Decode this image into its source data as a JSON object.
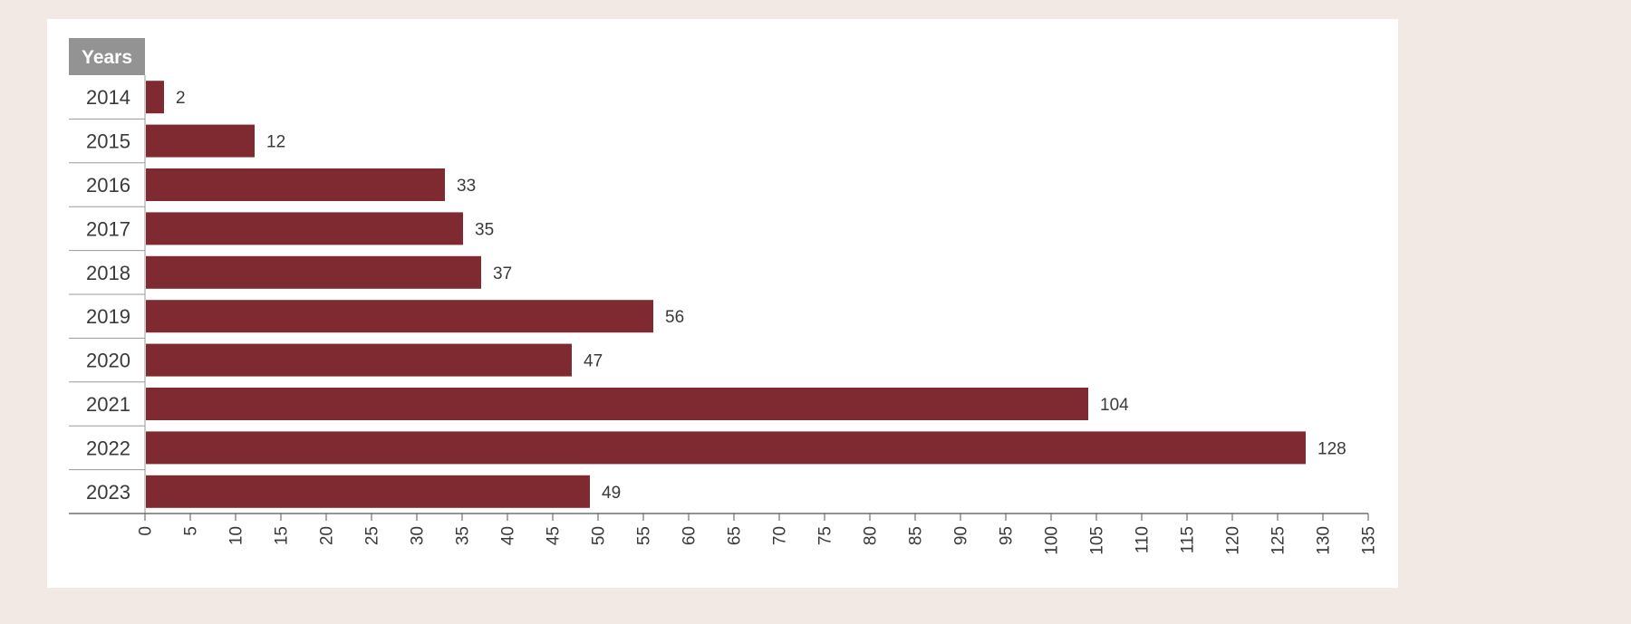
{
  "chart_data": {
    "type": "bar",
    "orientation": "horizontal",
    "header": "Years",
    "categories": [
      "2014",
      "2015",
      "2016",
      "2017",
      "2018",
      "2019",
      "2020",
      "2021",
      "2022",
      "2023"
    ],
    "values": [
      2,
      12,
      33,
      35,
      37,
      56,
      47,
      104,
      128,
      49
    ],
    "xlim": [
      0,
      135
    ],
    "x_ticks": [
      0,
      5,
      10,
      15,
      20,
      25,
      30,
      35,
      40,
      45,
      50,
      55,
      60,
      65,
      70,
      75,
      80,
      85,
      90,
      95,
      100,
      105,
      110,
      115,
      120,
      125,
      130,
      135
    ],
    "grid": false,
    "legend": "none",
    "colors": {
      "bar": "#7f2a31",
      "header_bg": "#939393",
      "page_bg": "#f3e9e4",
      "card_bg": "#ffffff"
    }
  }
}
